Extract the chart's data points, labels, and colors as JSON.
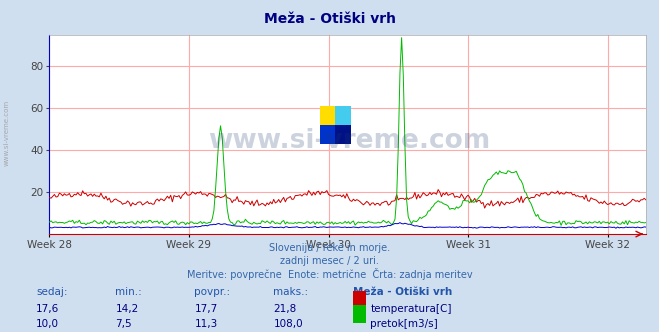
{
  "title": "Meža - Otiški vrh",
  "bg_color": "#d0dff0",
  "plot_bg_color": "#ffffff",
  "grid_color": "#ffaaaa",
  "x_tick_labels": [
    "Week 28",
    "Week 29",
    "Week 30",
    "Week 31",
    "Week 32"
  ],
  "x_tick_positions": [
    0,
    84,
    168,
    252,
    336
  ],
  "n_points": 360,
  "ylim": [
    0,
    95
  ],
  "yticks": [
    20,
    40,
    60,
    80
  ],
  "subtitle_lines": [
    "Slovenija / reke in morje.",
    "zadnji mesec / 2 uri.",
    "Meritve: povprečne  Enote: metrične  Črta: zadnja meritev"
  ],
  "table_headers": [
    "sedaj:",
    "min.:",
    "povpr.:",
    "maks.:",
    "Meža - Otiški vrh"
  ],
  "table_row1": [
    "17,6",
    "14,2",
    "17,7",
    "21,8"
  ],
  "table_row2": [
    "10,0",
    "7,5",
    "11,3",
    "108,0"
  ],
  "legend_labels": [
    "temperatura[C]",
    "pretok[m3/s]"
  ],
  "temp_color": "#cc0000",
  "flow_color": "#00bb00",
  "height_color": "#0000cc",
  "watermark_color": "#1a3a6a",
  "sidebar_text": "www.si-vreme.com",
  "title_color": "#000080",
  "subtitle_color": "#3366aa",
  "table_header_color": "#2255aa",
  "table_value_color": "#000080",
  "axis_color": "#0000cc"
}
